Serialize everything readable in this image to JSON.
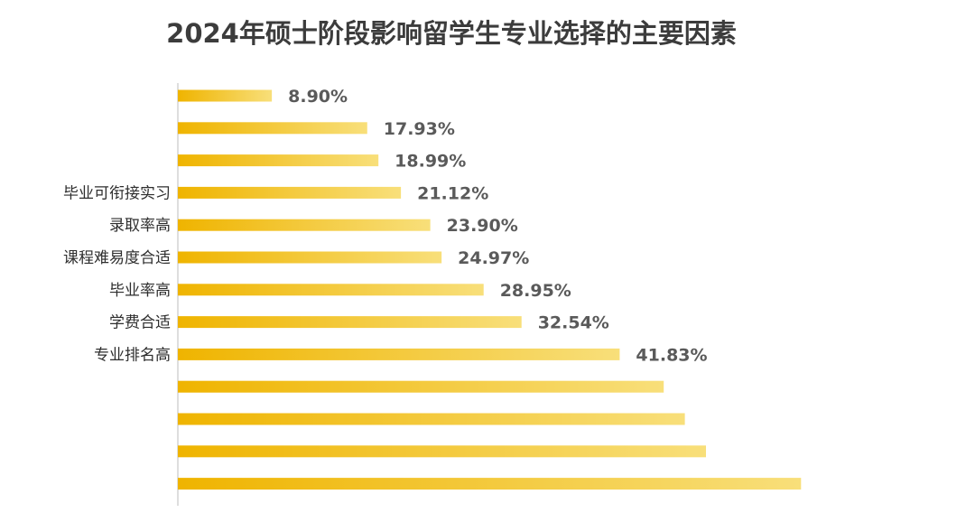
{
  "chart_data": {
    "type": "bar",
    "orientation": "horizontal",
    "title": "2024年硕士阶段影响留学生专业选择的主要因素",
    "xlabel": "",
    "ylabel": "",
    "grid": false,
    "bar_color_start": "#efb400",
    "bar_color_end": "#f8df7a",
    "categories": [
      "",
      "",
      "",
      "毕业可衔接实习",
      "录取率高",
      "课程难易度合适",
      "毕业率高",
      "学费合适",
      "专业排名高",
      "",
      "",
      "",
      ""
    ],
    "values": [
      8.9,
      17.93,
      18.99,
      21.12,
      23.9,
      24.97,
      28.95,
      32.54,
      41.83,
      46.0,
      48.0,
      50.0,
      59.0
    ],
    "value_labels": [
      "8.90%",
      "17.93%",
      "18.99%",
      "21.12%",
      "23.90%",
      "24.97%",
      "28.95%",
      "32.54%",
      "41.83%",
      "",
      "",
      "",
      ""
    ],
    "xlim": [
      0,
      60
    ]
  }
}
